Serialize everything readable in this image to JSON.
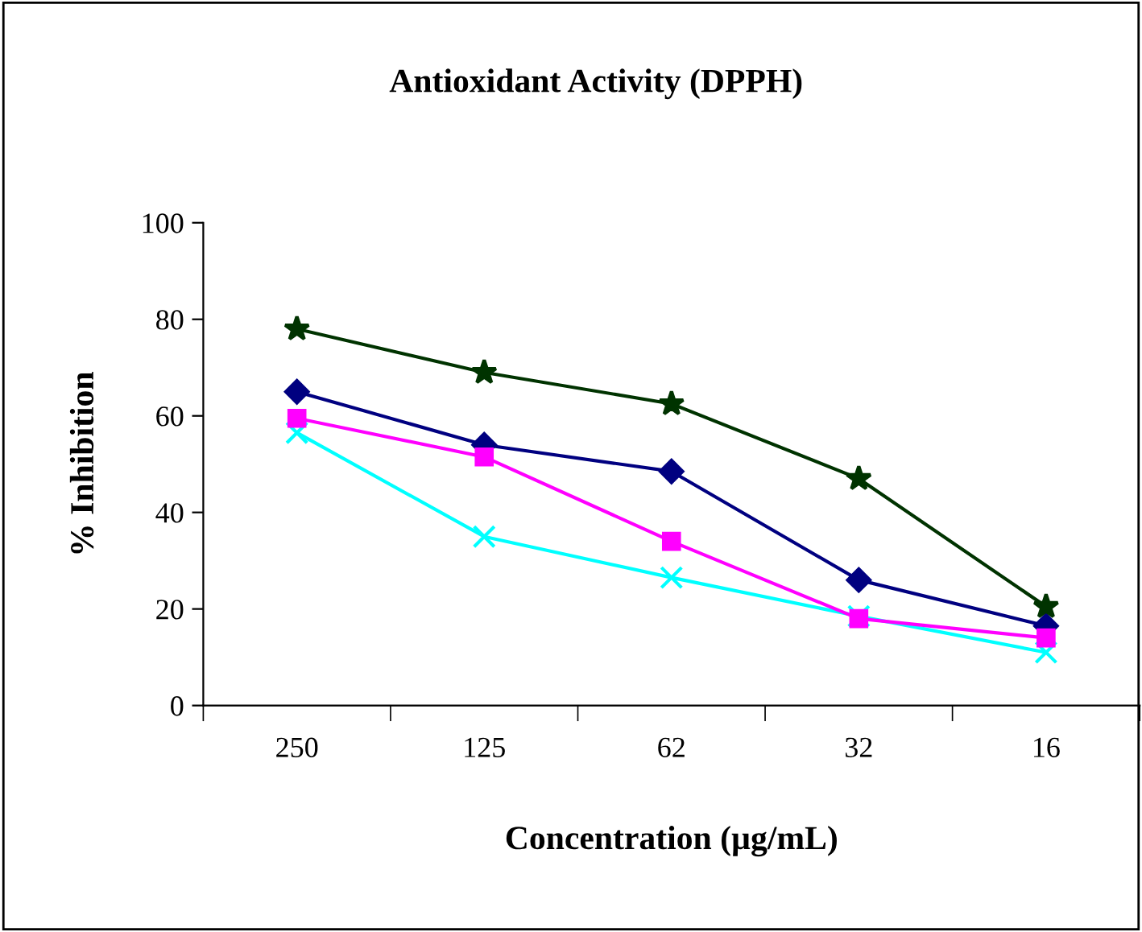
{
  "chart_data": {
    "type": "line",
    "title": "Antioxidant Activity (DPPH)",
    "xlabel": "Concentration (µg/mL)",
    "ylabel": "% Inhibition",
    "categories": [
      "250",
      "125",
      "62",
      "32",
      "16"
    ],
    "series": [
      {
        "color": "#000080",
        "marker": "diamond",
        "values": [
          65,
          54,
          48.5,
          26,
          16.5
        ]
      },
      {
        "color": "#ff00ff",
        "marker": "square",
        "values": [
          59.5,
          51.5,
          34,
          18,
          14
        ]
      },
      {
        "color": "#00ffff",
        "marker": "cross",
        "values": [
          56.5,
          35,
          26.5,
          18.5,
          11
        ]
      },
      {
        "color": "#003300",
        "marker": "star",
        "values": [
          78,
          69,
          62.5,
          47,
          20.5
        ]
      }
    ],
    "ylim": [
      0,
      100
    ],
    "yticks": [
      0,
      20,
      40,
      60,
      80,
      100
    ],
    "grid": false,
    "legend": false
  }
}
